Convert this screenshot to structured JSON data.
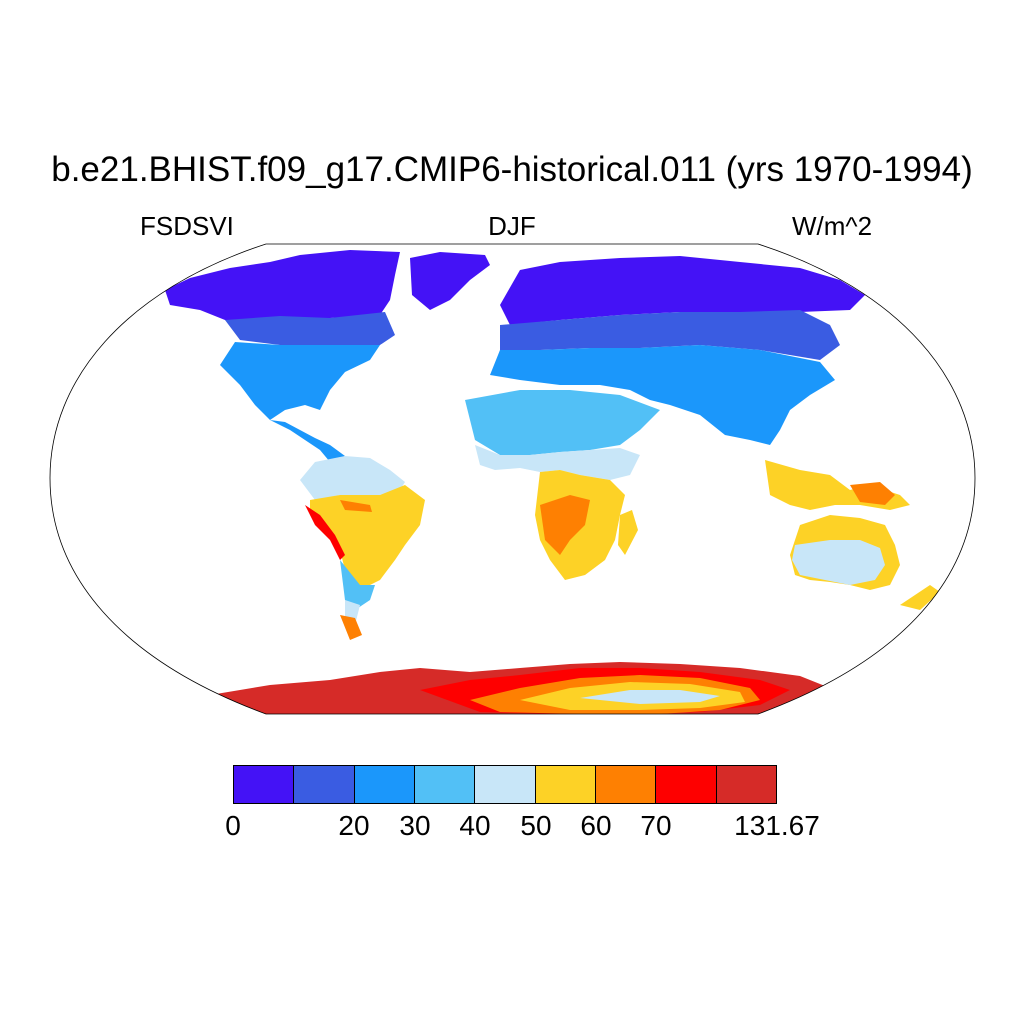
{
  "title": "b.e21.BHIST.f09_g17.CMIP6-historical.011 (yrs 1970-1994)",
  "left_string": "FSDSVI",
  "center_string": "DJF",
  "right_string": "W/m^2",
  "projection": "Robinson",
  "colorbar": {
    "colors": [
      "#4412f6",
      "#3a5ce2",
      "#1b97fb",
      "#52c0f6",
      "#c8e6f8",
      "#fdd226",
      "#fe8002",
      "#fe0000",
      "#d62b28"
    ],
    "labels": [
      "0",
      "20",
      "30",
      "40",
      "50",
      "60",
      "70",
      "131.67"
    ]
  }
}
